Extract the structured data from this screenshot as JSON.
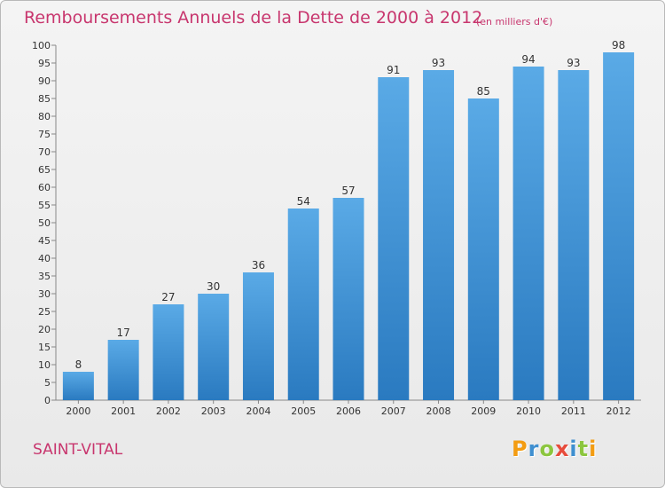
{
  "header": {
    "title": "Remboursements Annuels de la Dette de 2000 à 2012",
    "unit": "(en milliers d'€)"
  },
  "footer": {
    "commune": "SAINT-VITAL",
    "logo_text": "Proxiti",
    "logo_letters": [
      {
        "ch": "P",
        "color": "#f39c12"
      },
      {
        "ch": "r",
        "color": "#3f8fd0"
      },
      {
        "ch": "o",
        "color": "#8cc63f"
      },
      {
        "ch": "x",
        "color": "#e74c3c"
      },
      {
        "ch": "i",
        "color": "#3f8fd0"
      },
      {
        "ch": "t",
        "color": "#8cc63f"
      },
      {
        "ch": "i",
        "color": "#f39c12"
      }
    ]
  },
  "chart_data": {
    "type": "bar",
    "categories": [
      "2000",
      "2001",
      "2002",
      "2003",
      "2004",
      "2005",
      "2006",
      "2007",
      "2008",
      "2009",
      "2010",
      "2011",
      "2012"
    ],
    "values": [
      8,
      17,
      27,
      30,
      36,
      54,
      57,
      91,
      93,
      85,
      94,
      93,
      98
    ],
    "ylim": [
      0,
      100
    ],
    "ytick_step": 5,
    "grid": false,
    "bar_color_top": "#5aaae6",
    "bar_color_bottom": "#2a7ac0",
    "value_labels": true
  }
}
